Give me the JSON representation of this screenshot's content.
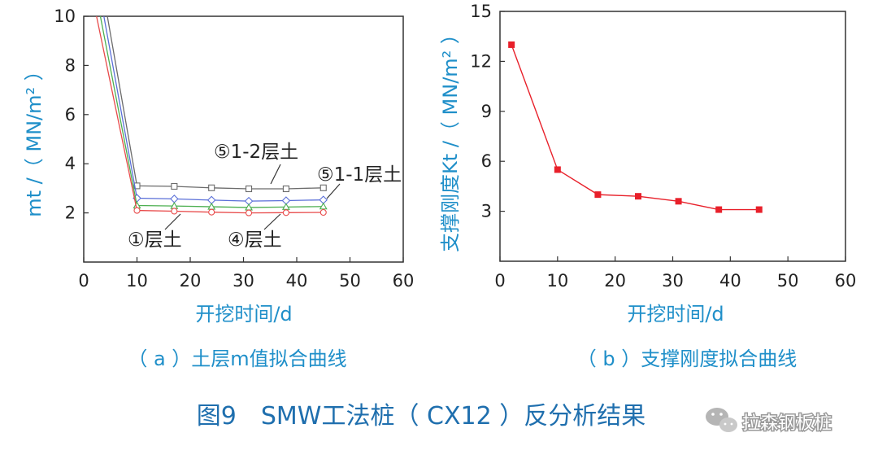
{
  "chart_data": [
    {
      "type": "line",
      "panel_caption": "（ a ）土层m值拟合曲线",
      "xlabel": "开挖时间/d",
      "ylabel": "mt /（ MN/m² ）",
      "xlim": [
        0,
        60
      ],
      "ylim": [
        0,
        10
      ],
      "x_ticks": [
        "0",
        "10",
        "20",
        "30",
        "40",
        "50",
        "60"
      ],
      "y_ticks": [
        "2",
        "4",
        "6",
        "8",
        "10"
      ],
      "grid": false,
      "x": [
        0,
        10,
        17,
        24,
        31,
        38,
        45
      ],
      "series": [
        {
          "name": "⑤1-2层土",
          "color": "#6b6b6b",
          "marker": "square-open",
          "values": [
            15.5,
            3.1,
            3.08,
            3.02,
            2.98,
            2.98,
            3.02
          ]
        },
        {
          "name": "⑤1-1层土",
          "color": "#5a6fd8",
          "marker": "diamond-open",
          "values": [
            14.5,
            2.6,
            2.57,
            2.52,
            2.48,
            2.5,
            2.53
          ]
        },
        {
          "name": "④层土",
          "color": "#4caf50",
          "marker": "triangle-open",
          "values": [
            13.5,
            2.3,
            2.28,
            2.25,
            2.22,
            2.24,
            2.26
          ]
        },
        {
          "name": "①层土",
          "color": "#e84a4a",
          "marker": "circle-open",
          "values": [
            12.5,
            2.1,
            2.07,
            2.03,
            2.0,
            2.01,
            2.02
          ]
        }
      ],
      "annotations": [
        "⑤1-2层土",
        "⑤1-1层土",
        "①层土",
        "④层土"
      ]
    },
    {
      "type": "line",
      "panel_caption": "（ b ）支撑刚度拟合曲线",
      "xlabel": "开挖时间/d",
      "ylabel": "支撑刚度Kt /（ MN/m² ）",
      "xlim": [
        0,
        60
      ],
      "ylim": [
        0,
        15
      ],
      "x_ticks": [
        "0",
        "10",
        "20",
        "30",
        "40",
        "50",
        "60"
      ],
      "y_ticks": [
        "3",
        "6",
        "9",
        "12",
        "15"
      ],
      "grid": false,
      "series": [
        {
          "color": "#e8202a",
          "marker": "square-filled",
          "x": [
            2,
            10,
            17,
            24,
            31,
            38,
            45
          ],
          "values": [
            13.0,
            5.5,
            4.0,
            3.9,
            3.6,
            3.1,
            3.1
          ]
        }
      ]
    }
  ],
  "figure_title": "图9　SMW工法桩（ CX12 ）反分析结果",
  "watermark": "拉森钢板桩"
}
